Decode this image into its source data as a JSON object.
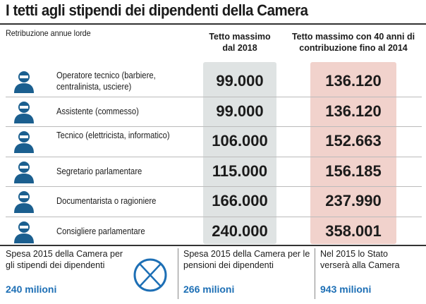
{
  "header": {
    "title": "I tetti agli stipendi dei dipendenti della Camera",
    "subtitle": "Retribuzione annue lorde"
  },
  "table": {
    "columns": [
      "Tetto massimo dal 2018",
      "Tetto massimo con 40 anni di contribuzione fino al 2014"
    ],
    "rows": [
      [
        "Operatore tecnico (barbiere, centralinista, usciere)",
        "99.000",
        "136.120"
      ],
      [
        "Assistente (commesso)",
        "99.000",
        "136.120"
      ],
      [
        "Tecnico (elettricista, informatico)",
        "106.000",
        "152.663"
      ],
      [
        "Segretario parlamentare",
        "115.000",
        "156.185"
      ],
      [
        "Documentarista o ragioniere",
        "166.000",
        "237.990"
      ],
      [
        "Consigliere parlamentare",
        "240.000",
        "358.001"
      ]
    ]
  },
  "footer": [
    {
      "text": "Spesa 2015 della Camera per gli stipendi dei dipendenti",
      "amount": "240 milioni"
    },
    {
      "text": "Spesa 2015 della Camera per le pensioni dei dipendenti",
      "amount": "266 milioni"
    },
    {
      "text": "Nel 2015 lo Stato verserà alla Camera",
      "amount": "943 milioni"
    }
  ]
}
